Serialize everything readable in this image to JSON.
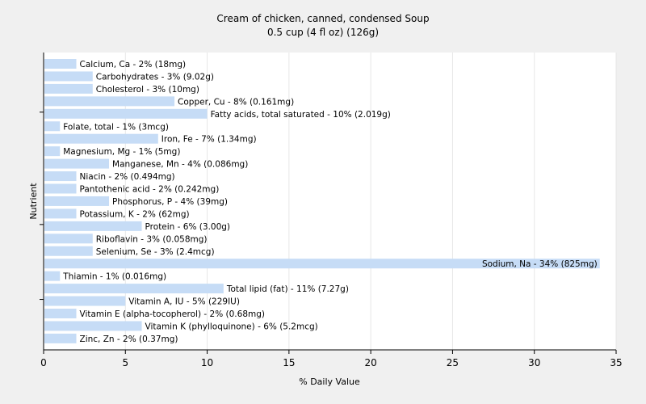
{
  "chart_data": {
    "type": "bar",
    "orientation": "horizontal",
    "title": "Cream of chicken, canned, condensed Soup",
    "subtitle": "0.5 cup (4 fl oz) (126g)",
    "xlabel": "% Daily Value",
    "ylabel": "Nutrient",
    "xlim": [
      0,
      35
    ],
    "xticks": [
      0,
      5,
      10,
      15,
      20,
      25,
      30,
      35
    ],
    "grid": "vertical",
    "bar_color": "#c6dcf6",
    "categories": [
      "Calcium, Ca - 2% (18mg)",
      "Carbohydrates - 3% (9.02g)",
      "Cholesterol - 3% (10mg)",
      "Copper, Cu - 8% (0.161mg)",
      "Fatty acids, total saturated - 10% (2.019g)",
      "Folate, total - 1% (3mcg)",
      "Iron, Fe - 7% (1.34mg)",
      "Magnesium, Mg - 1% (5mg)",
      "Manganese, Mn - 4% (0.086mg)",
      "Niacin - 2% (0.494mg)",
      "Pantothenic acid - 2% (0.242mg)",
      "Phosphorus, P - 4% (39mg)",
      "Potassium, K - 2% (62mg)",
      "Protein - 6% (3.00g)",
      "Riboflavin - 3% (0.058mg)",
      "Selenium, Se - 3% (2.4mcg)",
      "Sodium, Na - 34% (825mg)",
      "Thiamin - 1% (0.016mg)",
      "Total lipid (fat) - 11% (7.27g)",
      "Vitamin A, IU - 5% (229IU)",
      "Vitamin E (alpha-tocopherol) - 2% (0.68mg)",
      "Vitamin K (phylloquinone) - 6% (5.2mcg)",
      "Zinc, Zn - 2% (0.37mg)"
    ],
    "values": [
      2,
      3,
      3,
      8,
      10,
      1,
      7,
      1,
      4,
      2,
      2,
      4,
      2,
      6,
      3,
      3,
      34,
      1,
      11,
      5,
      2,
      6,
      2
    ]
  }
}
